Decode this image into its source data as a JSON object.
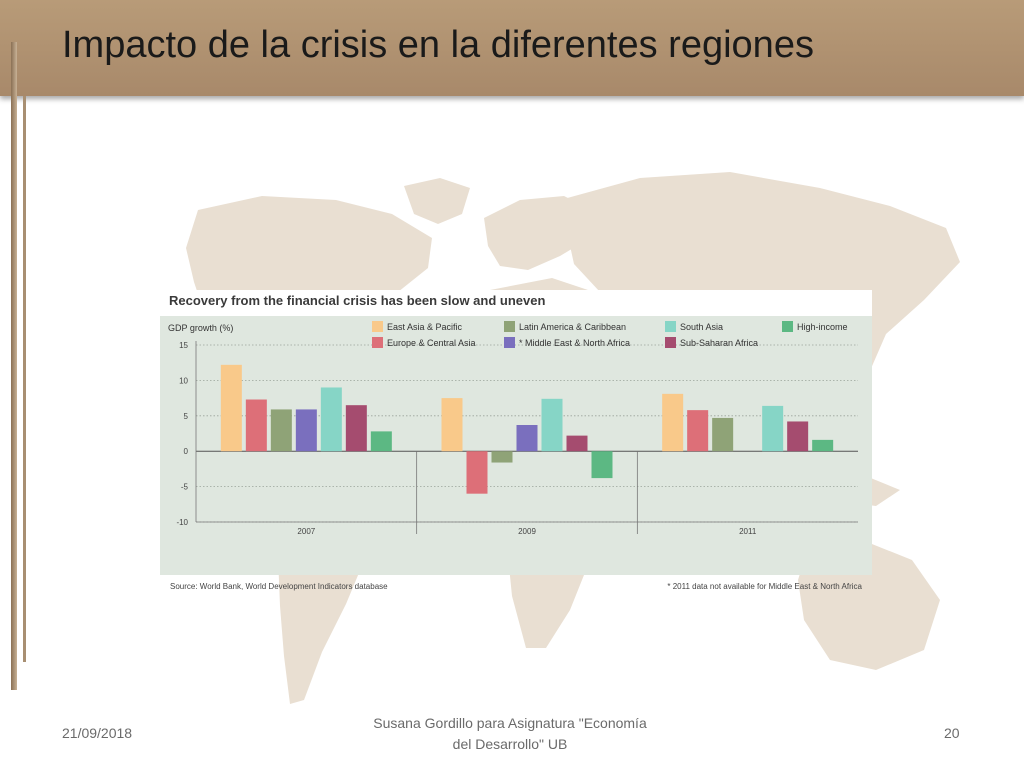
{
  "slide": {
    "title": "Impacto de la crisis en la diferentes regiones",
    "footer": {
      "date": "21/09/2018",
      "center_line1": "Susana Gordillo para Asignatura \"Economía",
      "center_line2": "del Desarrollo\" UB",
      "page_number": "20"
    }
  },
  "colors": {
    "title_bar": "#b09273",
    "chart_background": "#dfe7df",
    "map": "#e9dfd2"
  },
  "chart_data": {
    "type": "bar",
    "title": "Recovery from the financial crisis has been slow and uneven",
    "ylabel": "GDP growth (%)",
    "xlabel": "",
    "categories": [
      "2007",
      "2009",
      "2011"
    ],
    "ylim": [
      -10,
      15
    ],
    "yticks": [
      15,
      10,
      5,
      0,
      -5,
      -10
    ],
    "grid": true,
    "legend_position": "top",
    "series": [
      {
        "name": "East Asia & Pacific",
        "color": "#f9c98a",
        "values": [
          12.2,
          7.5,
          8.1
        ]
      },
      {
        "name": "Europe & Central Asia",
        "color": "#dd6f78",
        "values": [
          7.3,
          -6.0,
          5.8
        ]
      },
      {
        "name": "Latin America & Caribbean",
        "color": "#8fa377",
        "values": [
          5.9,
          -1.6,
          4.7
        ]
      },
      {
        "name": "* Middle East & North Africa",
        "color": "#7a6fbe",
        "values": [
          5.9,
          3.7,
          null
        ]
      },
      {
        "name": "South Asia",
        "color": "#86d5c6",
        "values": [
          9.0,
          7.4,
          6.4
        ]
      },
      {
        "name": "Sub-Saharan Africa",
        "color": "#a54c6f",
        "values": [
          6.5,
          2.2,
          4.2
        ]
      },
      {
        "name": "High-income",
        "color": "#5cb883",
        "values": [
          2.8,
          -3.8,
          1.6
        ]
      }
    ],
    "source": "Source: World Bank, World Development Indicators database",
    "note": "* 2011 data not available for Middle East & North Africa"
  }
}
